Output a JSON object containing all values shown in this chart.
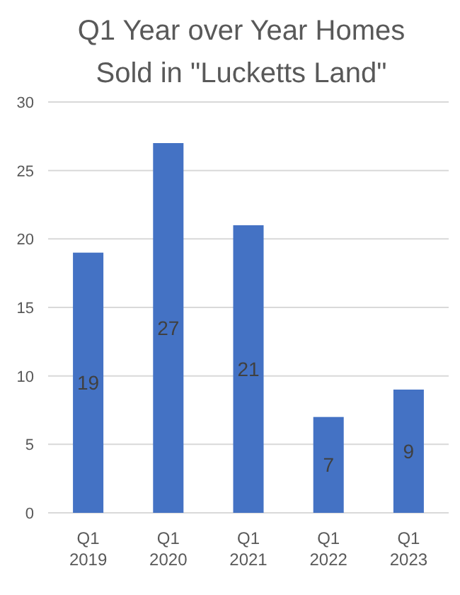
{
  "chart_data": {
    "type": "bar",
    "title": "Q1 Year over Year Homes Sold in \"Lucketts Land\"",
    "categories": [
      "Q1 2019",
      "Q1 2020",
      "Q1 2021",
      "Q1 2022",
      "Q1 2023"
    ],
    "values": [
      19,
      27,
      21,
      7,
      9
    ],
    "color": "#4472c4",
    "ylim": [
      0,
      30
    ],
    "yticks": [
      0,
      5,
      10,
      15,
      20,
      25,
      30
    ],
    "grid": "y",
    "data_labels": true
  }
}
